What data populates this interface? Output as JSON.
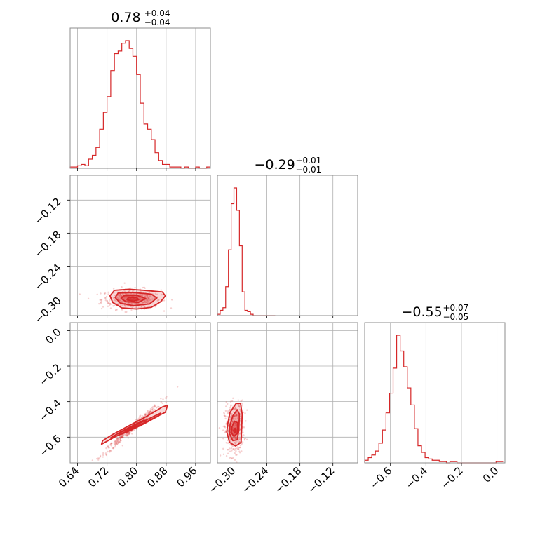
{
  "chart_data": {
    "type": "corner",
    "color": "#d62728",
    "grid": true,
    "params": [
      {
        "range": [
          0.62,
          1.0
        ],
        "ticks": [
          0.64,
          0.72,
          0.8,
          0.88,
          0.96
        ],
        "tick_labels": [
          "0.64",
          "0.72",
          "0.80",
          "0.88",
          "0.96"
        ]
      },
      {
        "range": [
          -0.33,
          -0.075
        ],
        "ticks": [
          -0.3,
          -0.24,
          -0.18,
          -0.12
        ],
        "tick_labels": [
          "−0.30",
          "−0.24",
          "−0.18",
          "−0.12"
        ]
      },
      {
        "range": [
          -0.745,
          0.045
        ],
        "ticks": [
          -0.6,
          -0.4,
          -0.2,
          0.0
        ],
        "tick_labels": [
          "−0.6",
          "−0.4",
          "−0.2",
          "0.0"
        ]
      }
    ],
    "titles": [
      {
        "value": "0.78",
        "plus": "+0.04",
        "minus": "−0.04"
      },
      {
        "value": "−0.29",
        "plus": "+0.01",
        "minus": "−0.01"
      },
      {
        "value": "−0.55",
        "plus": "+0.07",
        "minus": "−0.05"
      }
    ],
    "histograms": [
      {
        "x": [
          0.625,
          0.635,
          0.645,
          0.655,
          0.665,
          0.675,
          0.685,
          0.695,
          0.705,
          0.715,
          0.725,
          0.735,
          0.745,
          0.755,
          0.765,
          0.775,
          0.785,
          0.795,
          0.805,
          0.815,
          0.825,
          0.835,
          0.845,
          0.855,
          0.865,
          0.875,
          0.885,
          0.895,
          0.905,
          0.915,
          0.925,
          0.935,
          0.945,
          0.955,
          0.965,
          0.975,
          0.985,
          0.995
        ],
        "counts": [
          1,
          1,
          2,
          3,
          2,
          7,
          10,
          16,
          30,
          43,
          55,
          75,
          88,
          90,
          96,
          98,
          92,
          86,
          72,
          50,
          34,
          30,
          22,
          12,
          6,
          3,
          3,
          1,
          1,
          1,
          0,
          1,
          0,
          0,
          1,
          0,
          0,
          1
        ]
      },
      {
        "x": [
          -0.3275,
          -0.3225,
          -0.3175,
          -0.3125,
          -0.3075,
          -0.3025,
          -0.2975,
          -0.2925,
          -0.2875,
          -0.2825,
          -0.2775,
          -0.2725,
          -0.2675,
          -0.2625,
          -0.2575,
          -0.2525,
          -0.2475,
          -0.2425,
          -0.2375,
          -0.2325,
          -0.2275
        ],
        "counts": [
          1,
          4,
          6,
          22,
          50,
          85,
          97,
          80,
          53,
          18,
          4,
          3,
          1,
          0,
          0,
          0,
          0,
          0,
          0,
          0,
          0
        ]
      },
      {
        "x": [
          -0.735,
          -0.715,
          -0.695,
          -0.675,
          -0.655,
          -0.635,
          -0.615,
          -0.595,
          -0.575,
          -0.555,
          -0.535,
          -0.515,
          -0.495,
          -0.475,
          -0.455,
          -0.435,
          -0.415,
          -0.395,
          -0.375,
          -0.355,
          -0.335,
          -0.315,
          -0.295,
          -0.275,
          -0.255,
          -0.235,
          -0.215,
          -0.195,
          -0.175,
          -0.155,
          -0.135,
          -0.115,
          -0.095,
          -0.075,
          -0.055,
          -0.035,
          -0.015,
          0.005,
          0.025
        ],
        "counts": [
          2,
          4,
          6,
          9,
          15,
          25,
          38,
          53,
          72,
          97,
          85,
          73,
          57,
          44,
          26,
          13,
          8,
          4,
          3,
          2,
          2,
          1,
          1,
          0,
          1,
          1,
          0,
          0,
          0,
          0,
          0,
          0,
          0,
          0,
          0,
          0,
          0,
          1,
          1
        ]
      }
    ],
    "joint": [
      {
        "px": 0,
        "py": 1,
        "center": [
          0.785,
          -0.3
        ],
        "sx": 0.038,
        "sy": 0.0085,
        "rho": 0.05,
        "contours": [
          [
            [
              0.74,
              -0.284
            ],
            [
              0.78,
              -0.282
            ],
            [
              0.82,
              -0.284
            ],
            [
              0.87,
              -0.287
            ],
            [
              0.878,
              -0.294
            ],
            [
              0.865,
              -0.305
            ],
            [
              0.84,
              -0.315
            ],
            [
              0.8,
              -0.318
            ],
            [
              0.76,
              -0.316
            ],
            [
              0.735,
              -0.306
            ],
            [
              0.728,
              -0.294
            ]
          ],
          [
            [
              0.75,
              -0.289
            ],
            [
              0.79,
              -0.288
            ],
            [
              0.84,
              -0.291
            ],
            [
              0.855,
              -0.298
            ],
            [
              0.835,
              -0.309
            ],
            [
              0.79,
              -0.312
            ],
            [
              0.755,
              -0.307
            ],
            [
              0.742,
              -0.297
            ]
          ],
          [
            [
              0.765,
              -0.294
            ],
            [
              0.8,
              -0.293
            ],
            [
              0.825,
              -0.299
            ],
            [
              0.805,
              -0.306
            ],
            [
              0.772,
              -0.305
            ],
            [
              0.758,
              -0.299
            ]
          ],
          [
            [
              0.778,
              -0.297
            ],
            [
              0.8,
              -0.297
            ],
            [
              0.806,
              -0.301
            ],
            [
              0.79,
              -0.304
            ],
            [
              0.774,
              -0.301
            ]
          ]
        ]
      },
      {
        "px": 0,
        "py": 2,
        "center": [
          0.785,
          -0.555
        ],
        "sx": 0.038,
        "sy": 0.07,
        "rho": 0.985,
        "contours": [
          [
            [
              0.705,
              -0.64
            ],
            [
              0.74,
              -0.6
            ],
            [
              0.78,
              -0.56
            ],
            [
              0.83,
              -0.51
            ],
            [
              0.878,
              -0.46
            ],
            [
              0.884,
              -0.42
            ],
            [
              0.87,
              -0.43
            ],
            [
              0.83,
              -0.48
            ],
            [
              0.78,
              -0.535
            ],
            [
              0.735,
              -0.585
            ],
            [
              0.708,
              -0.62
            ]
          ],
          [
            [
              0.73,
              -0.605
            ],
            [
              0.77,
              -0.575
            ],
            [
              0.82,
              -0.525
            ],
            [
              0.86,
              -0.48
            ],
            [
              0.865,
              -0.465
            ],
            [
              0.825,
              -0.505
            ],
            [
              0.775,
              -0.555
            ],
            [
              0.735,
              -0.595
            ]
          ],
          [
            [
              0.755,
              -0.585
            ],
            [
              0.79,
              -0.555
            ],
            [
              0.825,
              -0.515
            ],
            [
              0.82,
              -0.505
            ],
            [
              0.785,
              -0.54
            ],
            [
              0.752,
              -0.575
            ]
          ],
          [
            [
              0.775,
              -0.565
            ],
            [
              0.795,
              -0.545
            ],
            [
              0.792,
              -0.54
            ],
            [
              0.773,
              -0.558
            ]
          ]
        ]
      },
      {
        "px": 1,
        "py": 2,
        "center": [
          -0.2995,
          -0.555
        ],
        "sx": 0.0085,
        "sy": 0.07,
        "rho": 0.1,
        "contours": [
          [
            [
              -0.311,
              -0.52
            ],
            [
              -0.307,
              -0.46
            ],
            [
              -0.296,
              -0.41
            ],
            [
              -0.288,
              -0.41
            ],
            [
              -0.285,
              -0.47
            ],
            [
              -0.286,
              -0.56
            ],
            [
              -0.287,
              -0.63
            ],
            [
              -0.297,
              -0.65
            ],
            [
              -0.308,
              -0.63
            ],
            [
              -0.313,
              -0.57
            ]
          ],
          [
            [
              -0.307,
              -0.53
            ],
            [
              -0.302,
              -0.48
            ],
            [
              -0.294,
              -0.445
            ],
            [
              -0.29,
              -0.47
            ],
            [
              -0.291,
              -0.56
            ],
            [
              -0.294,
              -0.615
            ],
            [
              -0.302,
              -0.62
            ],
            [
              -0.308,
              -0.58
            ]
          ],
          [
            [
              -0.304,
              -0.545
            ],
            [
              -0.299,
              -0.51
            ],
            [
              -0.293,
              -0.52
            ],
            [
              -0.294,
              -0.58
            ],
            [
              -0.3,
              -0.595
            ],
            [
              -0.305,
              -0.575
            ]
          ],
          [
            [
              -0.301,
              -0.565
            ],
            [
              -0.298,
              -0.55
            ],
            [
              -0.296,
              -0.565
            ],
            [
              -0.299,
              -0.575
            ]
          ]
        ]
      }
    ]
  }
}
